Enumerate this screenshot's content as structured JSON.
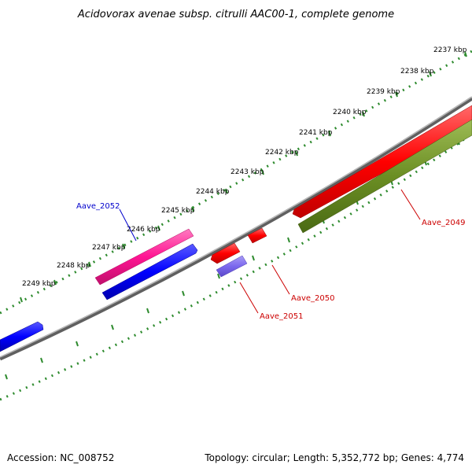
{
  "title": "Acidovorax avenae subsp. citrulli AAC00-1, complete genome",
  "ruler_ticks": [
    {
      "label": "2237 kbp"
    },
    {
      "label": "2238 kbp"
    },
    {
      "label": "2239 kbp"
    },
    {
      "label": "2240 kbp"
    },
    {
      "label": "2241 kbp"
    },
    {
      "label": "2242 kbp"
    },
    {
      "label": "2243 kbp"
    },
    {
      "label": "2244 kbp"
    },
    {
      "label": "2245 kbp"
    },
    {
      "label": "2246 kbp"
    },
    {
      "label": "2247 kbp"
    },
    {
      "label": "2248 kbp"
    },
    {
      "label": "2249 kbp"
    }
  ],
  "gene_labels": [
    {
      "name": "Aave_2052",
      "color": "#0000cc"
    },
    {
      "name": "Aave_2049",
      "color": "#cc0000"
    },
    {
      "name": "Aave_2050",
      "color": "#cc0000"
    },
    {
      "name": "Aave_2051",
      "color": "#cc0000"
    }
  ],
  "colors": {
    "forward_gene": "#ff0000",
    "reverse_gene": "#0000ff",
    "pink_gene": "#ff1493",
    "olive_gene": "#6b8e23",
    "lavender_gene": "#7b68ee",
    "backbone": "#808080",
    "ruler": "#2e8b2e"
  },
  "footer": {
    "accession": "Accession: NC_008752",
    "stats": "Topology: circular; Length: 5,352,772 bp; Genes: 4,774"
  }
}
